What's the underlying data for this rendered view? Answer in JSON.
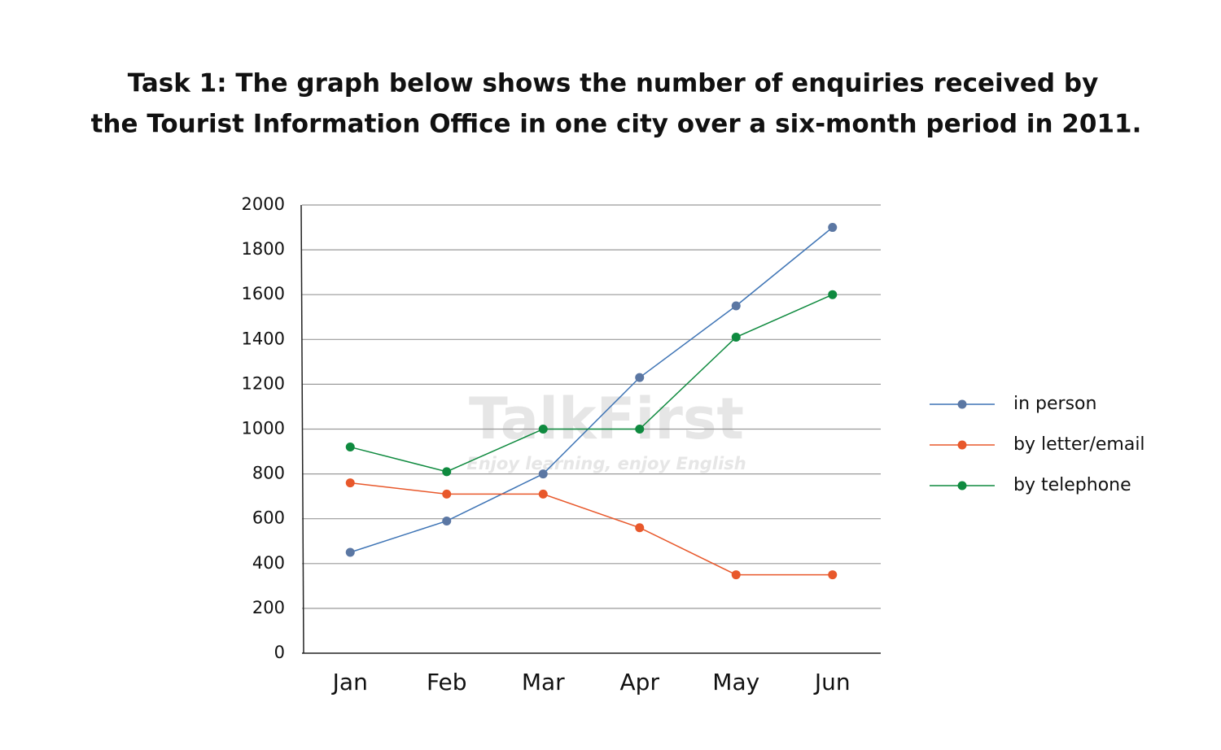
{
  "chart_data": {
    "type": "line",
    "title": [
      "Task 1: The graph below shows the number of enquiries received by",
      "the Tourist Information Office in one city over a six-month period in 2011."
    ],
    "watermark": [
      "TalkFirst",
      "Enjoy learning, enjoy English"
    ],
    "categories": [
      "Jan",
      "Feb",
      "Mar",
      "Apr",
      "May",
      "Jun"
    ],
    "series": [
      {
        "name": "in person",
        "color": "#3e74b5",
        "marker_color": "#5b77a3",
        "values": [
          450,
          590,
          800,
          1230,
          1550,
          1900
        ]
      },
      {
        "name": "by letter/email",
        "color": "#e8582b",
        "marker_color": "#e8582b",
        "values": [
          760,
          710,
          710,
          560,
          350,
          350
        ]
      },
      {
        "name": "by telephone",
        "color": "#0f8a3f",
        "marker_color": "#0f8a3f",
        "values": [
          920,
          810,
          1000,
          1000,
          1410,
          1600
        ]
      }
    ],
    "ylim": [
      0,
      2000
    ],
    "yticks": [
      0,
      200,
      400,
      600,
      800,
      1000,
      1200,
      1400,
      1600,
      1800,
      2000
    ],
    "grid": true,
    "legend": "right"
  }
}
